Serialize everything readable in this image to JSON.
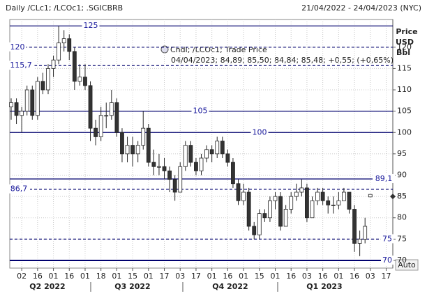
{
  "chart_data": {
    "type": "candlestick",
    "title": "Daily /CLc1; /LCOc1; .SGICBRB",
    "date_range": "21/04/2022 - 24/04/2023 (NYC)",
    "axis_label": [
      "Price",
      "USD",
      "Bbl"
    ],
    "legend": {
      "name": "Cndl; /LCOc1; Trade Price",
      "detail": "04/04/2023; 84,89; 85,50; 84,84; 85,48; +0,55; (+0,65%)"
    },
    "scale_mode": "Auto",
    "categories": [
      null,
      null,
      "02",
      null,
      null,
      "16",
      null,
      null,
      "01",
      null,
      null,
      "16",
      null,
      null,
      "01",
      null,
      null,
      "18",
      null,
      null,
      "01",
      null,
      null,
      "15",
      null,
      null,
      "01",
      null,
      null,
      "17",
      null,
      null,
      "03",
      null,
      null,
      "17",
      null,
      null,
      "01",
      null,
      null,
      "16",
      null,
      null,
      "01",
      null,
      null,
      "15",
      null,
      null,
      "01",
      null,
      null,
      "16",
      null,
      null,
      "03",
      null,
      null,
      "16",
      null,
      null,
      "01",
      null,
      null,
      "16",
      null,
      null,
      "03",
      null,
      null,
      "17"
    ],
    "quarters": [
      "Q2 2022",
      "Q3 2022",
      "Q4 2022",
      "Q1 2023"
    ],
    "candles": [
      [
        106,
        108,
        103,
        107
      ],
      [
        107,
        108,
        102,
        104
      ],
      [
        104,
        106,
        100,
        105
      ],
      [
        105,
        111,
        104,
        110
      ],
      [
        110,
        111,
        103,
        104
      ],
      [
        104,
        113,
        103,
        112
      ],
      [
        112,
        114,
        109,
        110
      ],
      [
        110,
        116,
        109,
        115
      ],
      [
        115,
        118,
        113,
        117
      ],
      [
        117,
        125,
        116,
        121
      ],
      [
        121,
        124,
        119,
        122
      ],
      [
        122,
        123,
        117,
        119
      ],
      [
        119,
        120,
        110,
        112
      ],
      [
        112,
        116,
        111,
        113
      ],
      [
        113,
        116,
        110,
        111
      ],
      [
        111,
        112,
        98,
        101
      ],
      [
        101,
        103,
        97,
        99
      ],
      [
        99,
        106,
        98,
        104
      ],
      [
        104,
        107,
        101,
        104
      ],
      [
        104,
        110,
        103,
        107
      ],
      [
        107,
        108,
        99,
        100
      ],
      [
        100,
        101,
        93,
        95
      ],
      [
        95,
        99,
        93,
        97
      ],
      [
        97,
        99,
        92,
        95
      ],
      [
        95,
        98,
        93,
        97
      ],
      [
        97,
        105,
        96,
        101
      ],
      [
        101,
        102,
        92,
        93
      ],
      [
        93,
        96,
        90,
        92
      ],
      [
        92,
        95,
        90,
        92
      ],
      [
        92,
        94,
        89,
        91
      ],
      [
        91,
        92,
        86,
        89
      ],
      [
        89,
        90,
        84,
        86
      ],
      [
        86,
        93,
        86,
        92
      ],
      [
        92,
        98,
        91,
        97
      ],
      [
        97,
        98,
        92,
        93
      ],
      [
        93,
        94,
        90,
        91
      ],
      [
        91,
        95,
        90,
        94
      ],
      [
        94,
        97,
        93,
        96
      ],
      [
        96,
        97,
        93,
        95
      ],
      [
        95,
        99,
        94,
        98
      ],
      [
        98,
        99,
        94,
        95
      ],
      [
        95,
        96,
        92,
        93
      ],
      [
        93,
        94,
        87,
        88
      ],
      [
        88,
        89,
        83,
        84
      ],
      [
        84,
        88,
        83,
        86
      ],
      [
        86,
        87,
        77,
        78
      ],
      [
        78,
        79,
        75,
        76
      ],
      [
        76,
        82,
        75,
        81
      ],
      [
        81,
        82,
        79,
        80
      ],
      [
        80,
        85,
        79,
        84
      ],
      [
        84,
        86,
        82,
        85
      ],
      [
        85,
        86,
        77,
        78
      ],
      [
        78,
        83,
        78,
        82
      ],
      [
        82,
        86,
        81,
        85
      ],
      [
        85,
        88,
        84,
        86
      ],
      [
        86,
        89,
        85,
        87
      ],
      [
        87,
        88,
        79,
        80
      ],
      [
        80,
        85,
        80,
        84
      ],
      [
        84,
        87,
        83,
        86
      ],
      [
        86,
        87,
        83,
        84
      ],
      [
        84,
        85,
        81,
        83
      ],
      [
        83,
        85,
        81,
        83
      ],
      [
        83,
        86,
        82,
        84
      ],
      [
        84,
        87,
        84,
        86
      ],
      [
        86,
        86,
        81,
        82
      ],
      [
        82,
        83,
        72,
        74
      ],
      [
        74,
        77,
        71,
        75
      ],
      [
        75,
        80,
        74,
        78
      ],
      [
        84.89,
        85.5,
        84.84,
        85.48
      ],
      null,
      null,
      null
    ],
    "color": "#333333",
    "ylim": [
      68.2,
      126.5
    ],
    "yticks": [
      70,
      75,
      80,
      85,
      90,
      95,
      100,
      105,
      110,
      115,
      120
    ],
    "grid": true,
    "hlines": [
      {
        "value": 125,
        "style": "solid"
      },
      {
        "value": 120,
        "style": "dashed"
      },
      {
        "value": 115.7,
        "label": "115,7",
        "style": "dashed"
      },
      {
        "value": 105,
        "style": "solid"
      },
      {
        "value": 100,
        "style": "solid"
      },
      {
        "value": 89.1,
        "label": "89,1",
        "style": "solid"
      },
      {
        "value": 86.7,
        "label": "86,7",
        "style": "dashed"
      },
      {
        "value": 75,
        "style": "dashed"
      },
      {
        "value": 70,
        "style": "thick"
      }
    ],
    "line_color": "#00006e",
    "last_marker": 85
  }
}
